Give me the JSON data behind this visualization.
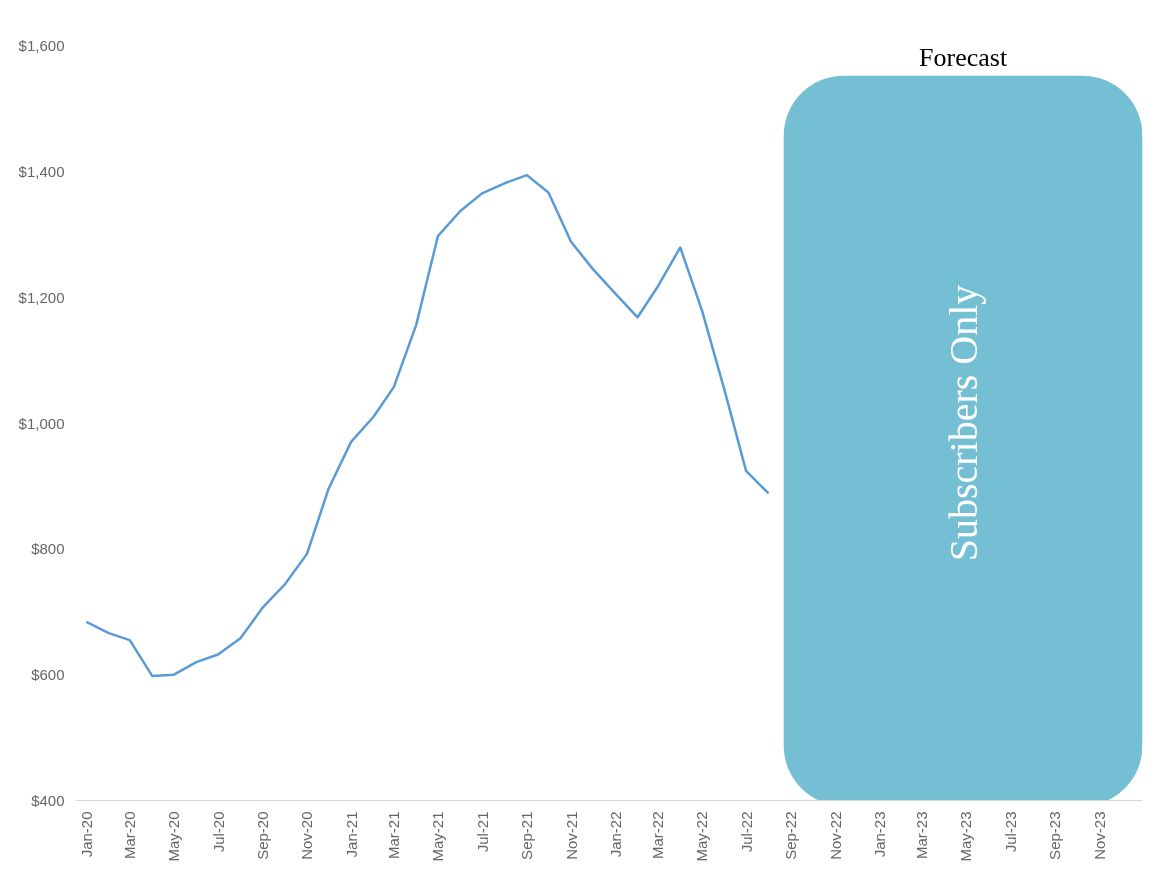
{
  "chart_data": {
    "type": "line",
    "x": [
      "2020-01",
      "2020-02",
      "2020-03",
      "2020-04",
      "2020-05",
      "2020-06",
      "2020-07",
      "2020-08",
      "2020-09",
      "2020-10",
      "2020-11",
      "2020-12",
      "2021-01",
      "2021-02",
      "2021-03",
      "2021-04",
      "2021-05",
      "2021-06",
      "2021-07",
      "2021-08",
      "2021-09",
      "2021-10",
      "2021-11",
      "2021-12",
      "2022-01",
      "2022-02",
      "2022-03",
      "2022-04",
      "2022-05",
      "2022-06",
      "2022-07",
      "2022-08"
    ],
    "series": [
      {
        "color": "#5b9bd5",
        "values": [
          684,
          666,
          655,
          598,
          600,
          620,
          632,
          658,
          707,
          743,
          792,
          896,
          970,
          1010,
          1057,
          1156,
          1297,
          1337,
          1365,
          1381,
          1394,
          1366,
          1288,
          1245,
          1206,
          1168,
          1217,
          1279,
          1179,
          1053,
          924,
          888
        ]
      }
    ],
    "ylim": [
      400,
      1600
    ],
    "yticks": [
      {
        "value": 400,
        "label": "$400"
      },
      {
        "value": 600,
        "label": "$600"
      },
      {
        "value": 800,
        "label": "$800"
      },
      {
        "value": 1000,
        "label": "$1,000"
      },
      {
        "value": 1200,
        "label": "$1,200"
      },
      {
        "value": 1400,
        "label": "$1,400"
      },
      {
        "value": 1600,
        "label": "$1,600"
      }
    ],
    "xlim": [
      "2019-12-17",
      "2023-12-31"
    ],
    "xticks": [
      {
        "value": "2020-01",
        "label": "Jan-20"
      },
      {
        "value": "2020-03",
        "label": "Mar-20"
      },
      {
        "value": "2020-05",
        "label": "May-20"
      },
      {
        "value": "2020-07",
        "label": "Jul-20"
      },
      {
        "value": "2020-09",
        "label": "Sep-20"
      },
      {
        "value": "2020-11",
        "label": "Nov-20"
      },
      {
        "value": "2021-01",
        "label": "Jan-21"
      },
      {
        "value": "2021-03",
        "label": "Mar-21"
      },
      {
        "value": "2021-05",
        "label": "May-21"
      },
      {
        "value": "2021-07",
        "label": "Jul-21"
      },
      {
        "value": "2021-09",
        "label": "Sep-21"
      },
      {
        "value": "2021-11",
        "label": "Nov-21"
      },
      {
        "value": "2022-01",
        "label": "Jan-22"
      },
      {
        "value": "2022-03",
        "label": "Mar-22"
      },
      {
        "value": "2022-05",
        "label": "May-22"
      },
      {
        "value": "2022-07",
        "label": "Jul-22"
      },
      {
        "value": "2022-09",
        "label": "Sep-22"
      },
      {
        "value": "2022-11",
        "label": "Nov-22"
      },
      {
        "value": "2023-01",
        "label": "Jan-23"
      },
      {
        "value": "2023-03",
        "label": "Mar-23"
      },
      {
        "value": "2023-05",
        "label": "May-23"
      },
      {
        "value": "2023-07",
        "label": "Jul-23"
      },
      {
        "value": "2023-09",
        "label": "Sep-23"
      },
      {
        "value": "2023-11",
        "label": "Nov-23"
      }
    ],
    "bands": [
      {
        "axis": "x",
        "from": "2022-08-22",
        "to": "2023-12-31",
        "label": "Subscribers Only",
        "color": "#74bfd3"
      }
    ],
    "annotations": [
      "Forecast"
    ],
    "grid": false,
    "marker": "none",
    "line_style": "solid"
  }
}
